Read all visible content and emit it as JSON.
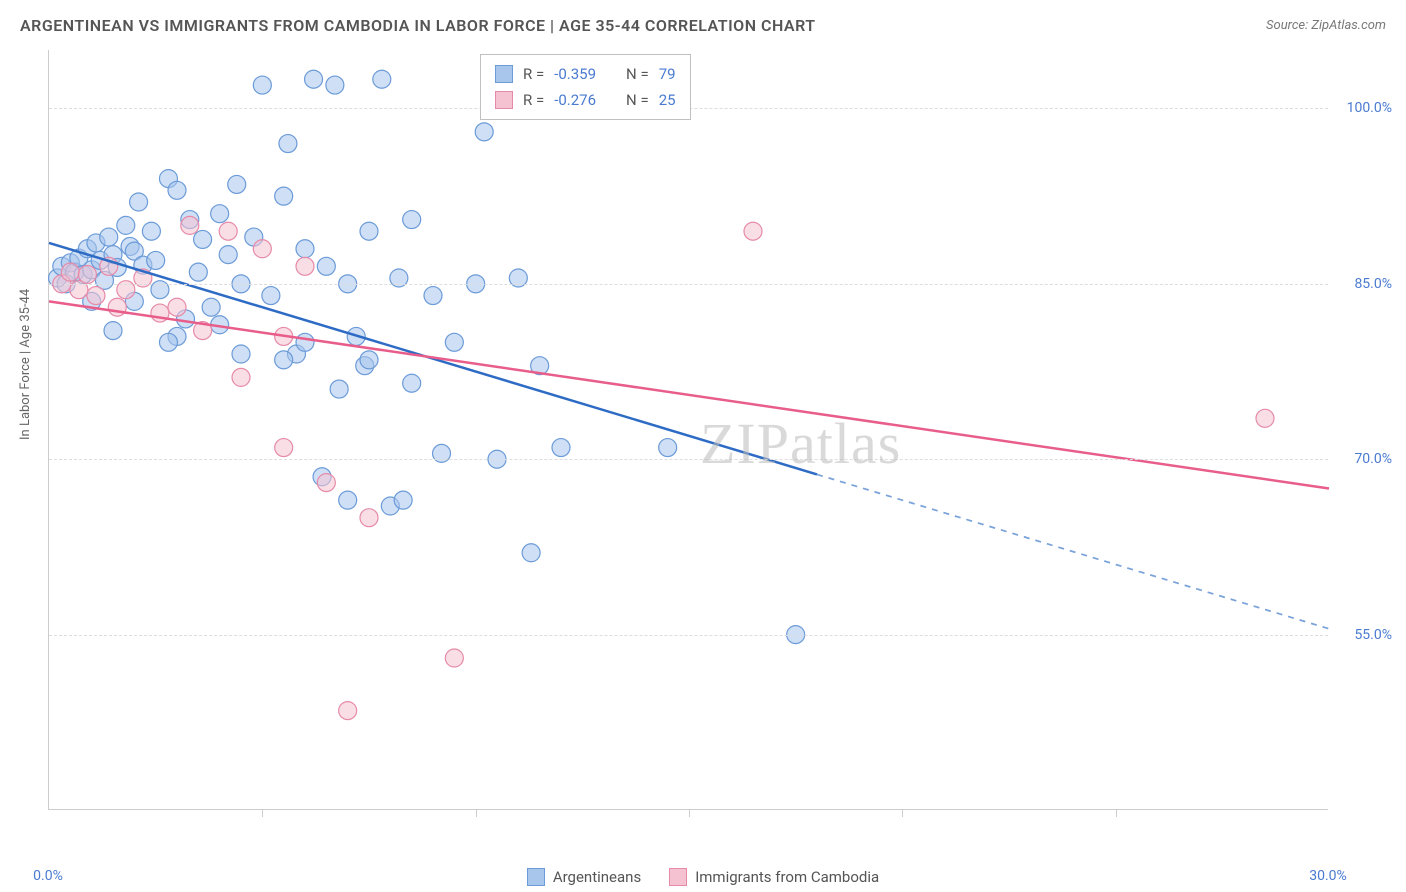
{
  "title": "ARGENTINEAN VS IMMIGRANTS FROM CAMBODIA IN LABOR FORCE | AGE 35-44 CORRELATION CHART",
  "source": "Source: ZipAtlas.com",
  "ylabel": "In Labor Force | Age 35-44",
  "watermark": "ZIPatlas",
  "chart": {
    "type": "scatter",
    "xlim": [
      0,
      30
    ],
    "ylim": [
      40,
      105
    ],
    "xticks": [
      0,
      30
    ],
    "xtick_labels": [
      "0.0%",
      "30.0%"
    ],
    "xtick_minor": [
      5,
      10,
      15,
      20,
      25
    ],
    "yticks": [
      55,
      70,
      85,
      100
    ],
    "ytick_labels": [
      "55.0%",
      "70.0%",
      "85.0%",
      "100.0%"
    ],
    "grid_color": "#dddddd",
    "background_color": "#ffffff",
    "axis_color": "#cccccc",
    "tick_label_color": "#4a7bd0",
    "series": [
      {
        "name": "Argentineans",
        "color_fill": "#a8c5ec",
        "color_stroke": "#6b9bd8",
        "fill_opacity": 0.55,
        "marker_radius": 9,
        "R": "-0.359",
        "N": "79",
        "regression": {
          "x1": 0,
          "y1": 88.5,
          "x2": 30,
          "y2": 55.5,
          "solid_until_x": 18,
          "line_color_solid": "#2d6bc4",
          "line_color_dash": "#7ba3d9",
          "line_width": 2.5
        },
        "points": [
          [
            0.2,
            85.5
          ],
          [
            0.3,
            86.5
          ],
          [
            0.4,
            85.0
          ],
          [
            0.5,
            86.8
          ],
          [
            0.6,
            86.0
          ],
          [
            0.7,
            87.2
          ],
          [
            0.8,
            85.8
          ],
          [
            0.9,
            88.0
          ],
          [
            1.0,
            86.2
          ],
          [
            1.1,
            88.5
          ],
          [
            1.2,
            87.0
          ],
          [
            1.3,
            85.3
          ],
          [
            1.4,
            89.0
          ],
          [
            1.5,
            87.5
          ],
          [
            1.6,
            86.4
          ],
          [
            1.8,
            90.0
          ],
          [
            1.9,
            88.2
          ],
          [
            2.0,
            87.8
          ],
          [
            2.1,
            92.0
          ],
          [
            2.2,
            86.6
          ],
          [
            2.4,
            89.5
          ],
          [
            2.5,
            87.0
          ],
          [
            2.6,
            84.5
          ],
          [
            2.8,
            94.0
          ],
          [
            3.0,
            93.0
          ],
          [
            3.2,
            82.0
          ],
          [
            3.3,
            90.5
          ],
          [
            3.5,
            86.0
          ],
          [
            3.6,
            88.8
          ],
          [
            3.8,
            83.0
          ],
          [
            4.0,
            91.0
          ],
          [
            4.2,
            87.5
          ],
          [
            4.4,
            93.5
          ],
          [
            4.5,
            85.0
          ],
          [
            4.8,
            89.0
          ],
          [
            5.0,
            102.0
          ],
          [
            5.2,
            84.0
          ],
          [
            5.5,
            92.5
          ],
          [
            5.6,
            97.0
          ],
          [
            5.8,
            79.0
          ],
          [
            6.0,
            88.0
          ],
          [
            6.2,
            102.5
          ],
          [
            6.4,
            68.5
          ],
          [
            6.5,
            86.5
          ],
          [
            6.7,
            102.0
          ],
          [
            7.0,
            85.0
          ],
          [
            7.2,
            80.5
          ],
          [
            7.4,
            78.0
          ],
          [
            7.5,
            89.5
          ],
          [
            7.8,
            102.5
          ],
          [
            8.0,
            66.0
          ],
          [
            8.2,
            85.5
          ],
          [
            8.3,
            66.5
          ],
          [
            8.5,
            90.5
          ],
          [
            9.0,
            84.0
          ],
          [
            9.2,
            70.5
          ],
          [
            9.5,
            80.0
          ],
          [
            10.0,
            85.0
          ],
          [
            10.2,
            98.0
          ],
          [
            10.5,
            70.0
          ],
          [
            11.0,
            85.5
          ],
          [
            11.3,
            62.0
          ],
          [
            11.5,
            78.0
          ],
          [
            12.0,
            71.0
          ],
          [
            3.0,
            80.5
          ],
          [
            1.0,
            83.5
          ],
          [
            1.5,
            81.0
          ],
          [
            2.0,
            83.5
          ],
          [
            2.8,
            80.0
          ],
          [
            4.0,
            81.5
          ],
          [
            4.5,
            79.0
          ],
          [
            5.5,
            78.5
          ],
          [
            6.0,
            80.0
          ],
          [
            6.8,
            76.0
          ],
          [
            7.5,
            78.5
          ],
          [
            8.5,
            76.5
          ],
          [
            14.5,
            71.0
          ],
          [
            17.5,
            55.0
          ],
          [
            7.0,
            66.5
          ]
        ]
      },
      {
        "name": "Immigrants from Cambodia",
        "color_fill": "#f5c2d1",
        "color_stroke": "#e68aa8",
        "fill_opacity": 0.55,
        "marker_radius": 9,
        "R": "-0.276",
        "N": "25",
        "regression": {
          "x1": 0,
          "y1": 83.5,
          "x2": 30,
          "y2": 67.5,
          "solid_until_x": 30,
          "line_color_solid": "#e85d8a",
          "line_color_dash": "#e85d8a",
          "line_width": 2.5
        },
        "points": [
          [
            0.3,
            85.0
          ],
          [
            0.5,
            86.0
          ],
          [
            0.7,
            84.5
          ],
          [
            0.9,
            85.8
          ],
          [
            1.1,
            84.0
          ],
          [
            1.4,
            86.5
          ],
          [
            1.6,
            83.0
          ],
          [
            1.8,
            84.5
          ],
          [
            2.2,
            85.5
          ],
          [
            2.6,
            82.5
          ],
          [
            3.0,
            83.0
          ],
          [
            3.3,
            90.0
          ],
          [
            3.6,
            81.0
          ],
          [
            4.2,
            89.5
          ],
          [
            4.5,
            77.0
          ],
          [
            5.0,
            88.0
          ],
          [
            5.5,
            71.0
          ],
          [
            6.0,
            86.5
          ],
          [
            6.5,
            68.0
          ],
          [
            7.5,
            65.0
          ],
          [
            9.5,
            53.0
          ],
          [
            7.0,
            48.5
          ],
          [
            16.5,
            89.5
          ],
          [
            28.5,
            73.5
          ],
          [
            5.5,
            80.5
          ]
        ]
      }
    ]
  },
  "stats_legend": {
    "label_R": "R =",
    "label_N": "N ="
  },
  "bottom_legend": {
    "items": [
      "Argentineans",
      "Immigrants from Cambodia"
    ]
  }
}
